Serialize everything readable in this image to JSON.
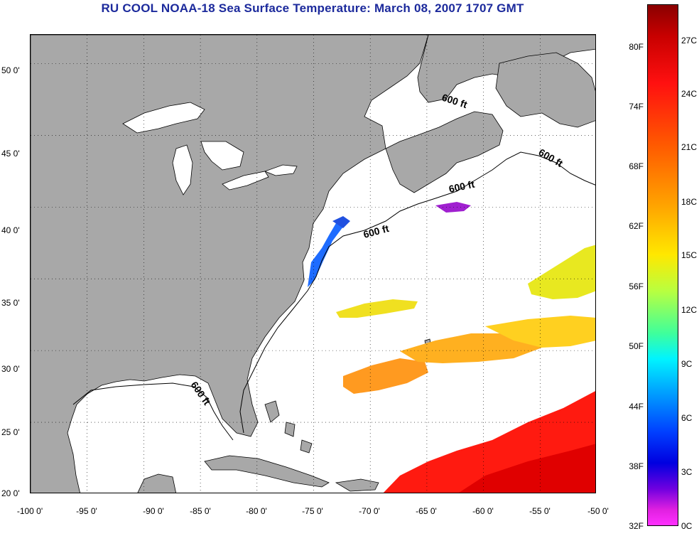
{
  "title": "RU COOL  NOAA-18  Sea Surface Temperature:  March 08, 2007 1707 GMT",
  "map": {
    "lon_range": [
      -100,
      -50
    ],
    "lat_range": [
      20,
      52
    ],
    "land_color": "#a8a8a8",
    "ocean_color": "#ffffff",
    "grid": "dotted",
    "lat_labels": [
      "50 0'",
      "45 0'",
      "40 0'",
      "35 0'",
      "30 0'",
      "25 0'",
      "20 0'"
    ],
    "lon_labels": [
      "-100 0'",
      "-95 0'",
      "-90 0'",
      "-85 0'",
      "-80 0'",
      "-75 0'",
      "-70 0'",
      "-65 0'",
      "-60 0'",
      "-55 0'",
      "-50 0'"
    ],
    "contour_labels": [
      "600 ft",
      "600 ft",
      "600 ft",
      "600 ft",
      "600 ft"
    ]
  },
  "colorbar": {
    "fahrenheit_labels": [
      "80F",
      "74F",
      "68F",
      "62F",
      "56F",
      "50F",
      "44F",
      "38F",
      "32F"
    ],
    "celsius_labels": [
      "27C",
      "24C",
      "21C",
      "18C",
      "15C",
      "12C",
      "9C",
      "6C",
      "3C",
      "0C"
    ],
    "colors": [
      "#8a0000",
      "#ff1010",
      "#ff5a00",
      "#ffa000",
      "#ffe800",
      "#40ff9a",
      "#00f4ff",
      "#00a6ff",
      "#0040ff",
      "#7000e0",
      "#ff30ff"
    ]
  }
}
